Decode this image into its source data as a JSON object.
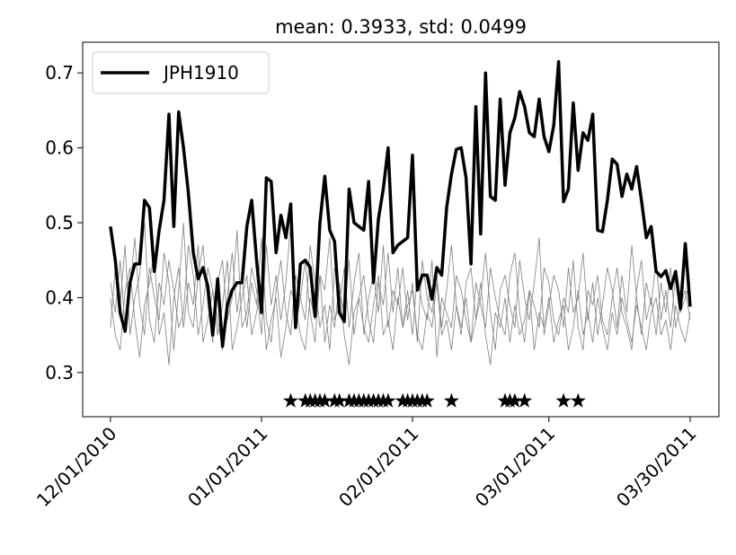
{
  "chart_data": {
    "type": "line",
    "title": "mean: 0.3933, std: 0.0499",
    "xlim": [
      -5.7,
      124.9
    ],
    "ylim": [
      0.241,
      0.741
    ],
    "xticks": [
      {
        "value": 0,
        "label": "12/01/2010"
      },
      {
        "value": 31,
        "label": "01/01/2011"
      },
      {
        "value": 62,
        "label": "02/01/2011"
      },
      {
        "value": 90,
        "label": "03/01/2011"
      },
      {
        "value": 119,
        "label": "03/30/2011"
      }
    ],
    "yticks": [
      0.3,
      0.4,
      0.5,
      0.6,
      0.7
    ],
    "legend": "upper left",
    "series": [
      {
        "name": "JPH1910",
        "color": "#000000",
        "values": [
          0.495,
          0.45,
          0.38,
          0.355,
          0.42,
          0.445,
          0.445,
          0.53,
          0.52,
          0.435,
          0.49,
          0.53,
          0.645,
          0.495,
          0.648,
          0.6,
          0.54,
          0.46,
          0.425,
          0.44,
          0.415,
          0.35,
          0.425,
          0.335,
          0.39,
          0.41,
          0.42,
          0.42,
          0.495,
          0.53,
          0.45,
          0.38,
          0.56,
          0.555,
          0.46,
          0.51,
          0.48,
          0.525,
          0.36,
          0.445,
          0.45,
          0.44,
          0.375,
          0.5,
          0.562,
          0.49,
          0.475,
          0.38,
          0.368,
          0.545,
          0.5,
          0.495,
          0.49,
          0.555,
          0.42,
          0.505,
          0.545,
          0.6,
          0.46,
          0.47,
          0.475,
          0.48,
          0.59,
          0.41,
          0.43,
          0.43,
          0.398,
          0.44,
          0.43,
          0.52,
          0.565,
          0.598,
          0.6,
          0.56,
          0.445,
          0.655,
          0.485,
          0.7,
          0.535,
          0.53,
          0.665,
          0.55,
          0.62,
          0.64,
          0.675,
          0.655,
          0.62,
          0.615,
          0.665,
          0.615,
          0.595,
          0.63,
          0.715,
          0.528,
          0.545,
          0.66,
          0.57,
          0.62,
          0.61,
          0.645,
          0.49,
          0.488,
          0.53,
          0.585,
          0.578,
          0.535,
          0.565,
          0.545,
          0.575,
          0.53,
          0.48,
          0.495,
          0.435,
          0.428,
          0.436,
          0.412,
          0.435,
          0.385,
          0.472,
          0.388
        ]
      }
    ],
    "ensemble": {
      "color": "#808080",
      "values": [
        [
          0.42,
          0.38,
          0.45,
          0.36,
          0.41,
          0.48,
          0.39,
          0.35,
          0.44,
          0.4,
          0.37,
          0.46,
          0.42,
          0.33,
          0.41,
          0.5,
          0.38,
          0.36,
          0.43,
          0.47,
          0.39,
          0.34,
          0.42,
          0.45,
          0.37,
          0.4,
          0.49,
          0.36,
          0.38,
          0.44,
          0.41,
          0.35,
          0.47,
          0.39,
          0.43,
          0.37,
          0.42,
          0.5,
          0.36,
          0.4,
          0.45,
          0.38,
          0.34,
          0.43,
          0.41,
          0.48,
          0.37,
          0.39,
          0.44,
          0.36,
          0.42,
          0.46,
          0.35,
          0.4,
          0.43,
          0.38,
          0.47,
          0.36,
          0.41,
          0.39,
          0.44,
          0.37,
          0.42,
          0.34,
          0.45,
          0.4,
          0.38,
          0.43,
          0.36,
          0.41,
          0.47,
          0.39,
          0.35,
          0.42,
          0.44,
          0.37,
          0.4,
          0.46,
          0.38,
          0.33,
          0.41,
          0.43,
          0.39,
          0.36,
          0.45,
          0.4,
          0.37,
          0.42,
          0.48,
          0.35,
          0.39,
          0.43,
          0.41,
          0.36,
          0.44,
          0.38,
          0.4,
          0.46,
          0.37,
          0.42,
          0.35,
          0.39,
          0.44,
          0.41,
          0.36,
          0.43,
          0.38,
          0.47,
          0.4,
          0.35,
          0.42,
          0.39,
          0.45,
          0.37,
          0.41,
          0.36,
          0.43,
          0.38,
          0.4,
          0.42
        ],
        [
          0.36,
          0.44,
          0.39,
          0.47,
          0.35,
          0.4,
          0.43,
          0.5,
          0.37,
          0.34,
          0.42,
          0.39,
          0.45,
          0.41,
          0.36,
          0.38,
          0.47,
          0.43,
          0.35,
          0.39,
          0.44,
          0.41,
          0.37,
          0.33,
          0.4,
          0.46,
          0.38,
          0.43,
          0.36,
          0.42,
          0.39,
          0.48,
          0.37,
          0.34,
          0.41,
          0.45,
          0.38,
          0.35,
          0.43,
          0.4,
          0.37,
          0.47,
          0.42,
          0.36,
          0.39,
          0.33,
          0.44,
          0.41,
          0.38,
          0.45,
          0.35,
          0.4,
          0.43,
          0.37,
          0.34,
          0.42,
          0.39,
          0.46,
          0.38,
          0.44,
          0.36,
          0.41,
          0.35,
          0.43,
          0.39,
          0.37,
          0.45,
          0.32,
          0.4,
          0.38,
          0.36,
          0.43,
          0.41,
          0.37,
          0.34,
          0.42,
          0.39,
          0.36,
          0.44,
          0.4,
          0.37,
          0.35,
          0.43,
          0.46,
          0.38,
          0.34,
          0.41,
          0.39,
          0.36,
          0.44,
          0.42,
          0.37,
          0.35,
          0.4,
          0.38,
          0.45,
          0.36,
          0.33,
          0.41,
          0.39,
          0.43,
          0.37,
          0.35,
          0.4,
          0.44,
          0.38,
          0.36,
          0.33,
          0.41,
          0.45,
          0.37,
          0.4,
          0.35,
          0.42,
          0.38,
          0.44,
          0.36,
          0.39,
          0.41,
          0.37
        ],
        [
          0.4,
          0.35,
          0.33,
          0.41,
          0.44,
          0.37,
          0.32,
          0.39,
          0.42,
          0.46,
          0.35,
          0.38,
          0.31,
          0.4,
          0.44,
          0.36,
          0.42,
          0.39,
          0.47,
          0.34,
          0.37,
          0.41,
          0.35,
          0.39,
          0.45,
          0.33,
          0.36,
          0.4,
          0.43,
          0.35,
          0.38,
          0.42,
          0.33,
          0.37,
          0.4,
          0.32,
          0.36,
          0.41,
          0.39,
          0.35,
          0.33,
          0.4,
          0.37,
          0.43,
          0.34,
          0.39,
          0.36,
          0.42,
          0.35,
          0.31,
          0.38,
          0.4,
          0.36,
          0.34,
          0.39,
          0.43,
          0.35,
          0.37,
          0.33,
          0.4,
          0.36,
          0.39,
          0.41,
          0.35,
          0.33,
          0.38,
          0.36,
          0.42,
          0.35,
          0.37,
          0.33,
          0.39,
          0.36,
          0.4,
          0.34,
          0.37,
          0.42,
          0.35,
          0.31,
          0.38,
          0.36,
          0.4,
          0.34,
          0.39,
          0.35,
          0.37,
          0.41,
          0.33,
          0.38,
          0.36,
          0.4,
          0.34,
          0.37,
          0.39,
          0.33,
          0.36,
          0.41,
          0.35,
          0.38,
          0.34,
          0.4,
          0.36,
          0.33,
          0.38,
          0.35,
          0.4,
          0.37,
          0.34,
          0.39,
          0.36,
          0.33,
          0.38,
          0.4,
          0.35,
          0.37,
          0.33,
          0.39,
          0.36,
          0.34,
          0.38
        ]
      ]
    },
    "markers": {
      "color": "#000000",
      "y": 0.262,
      "x": [
        37,
        40,
        41,
        42,
        43,
        44,
        46,
        47,
        49,
        50,
        51,
        52,
        53,
        54,
        55,
        56,
        57,
        60,
        61,
        62,
        63,
        64,
        65,
        70,
        81,
        82,
        83,
        85,
        93,
        96
      ]
    }
  }
}
